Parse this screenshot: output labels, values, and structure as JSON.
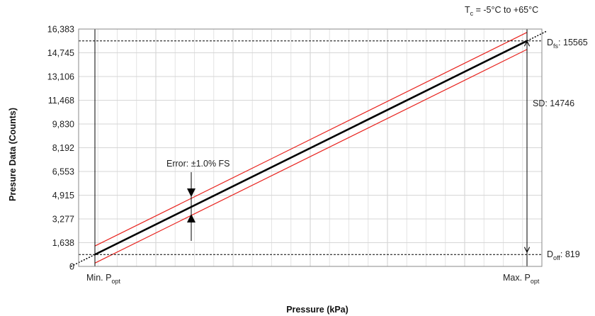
{
  "chart_data": {
    "type": "line",
    "title": "",
    "xlabel": "Pressure (kPa)",
    "ylabel": "Presure Data (Counts)",
    "ylim": [
      0,
      16383
    ],
    "yticks": [
      0,
      1638,
      3277,
      4915,
      6553,
      8192,
      9830,
      11468,
      13106,
      14745,
      16383
    ],
    "ytick_labels": [
      "0",
      "1,638",
      "3,277",
      "4,915",
      "6,553",
      "8,192",
      "9,830",
      "11,468",
      "13,106",
      "14,745",
      "16,383"
    ],
    "x_categories": [
      "Min. P",
      "Max. P"
    ],
    "x_subscript": "opt",
    "grid": true,
    "series": [
      {
        "values": [
          819,
          15565
        ],
        "color": "#000000"
      },
      {
        "values": [
          1408,
          16154
        ],
        "color": "#e8231e"
      },
      {
        "values": [
          230,
          14976
        ],
        "color": "#e8231e"
      }
    ],
    "reference_lines": {
      "d_fs": 15565,
      "d_off": 819
    },
    "annotations": {
      "temperature": {
        "prefix": "T",
        "sub": "c",
        "text": " = -5°C to +65°C"
      },
      "error": "Error: ±1.0% FS",
      "d_fs": {
        "prefix": "D",
        "sub": "fs",
        "text": ": 15565"
      },
      "d_off": {
        "prefix": "D",
        "sub": "off",
        "text": ": 819"
      },
      "span": "SD: 14746"
    }
  }
}
